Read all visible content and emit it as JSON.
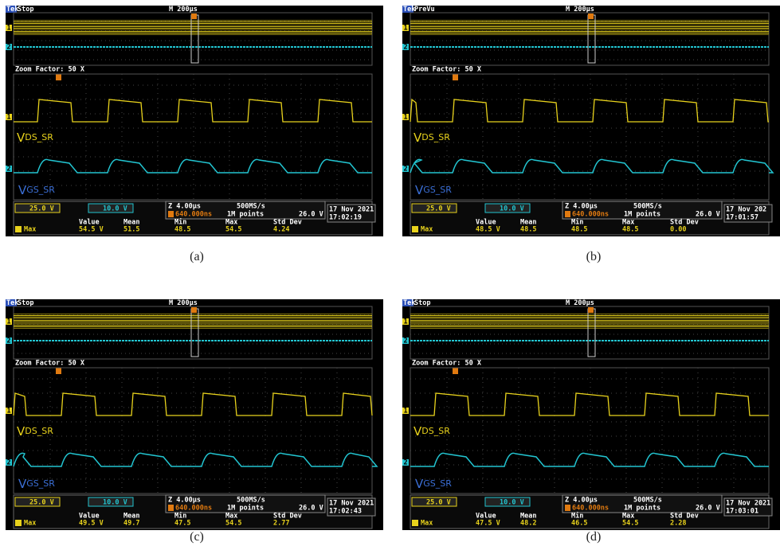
{
  "channel_ids": [
    "1",
    "2"
  ],
  "panels": [
    {
      "caption": "(a)",
      "brand": "Tek",
      "status": "Stop",
      "timebase": "M 200µs",
      "zoom": "Zoom Factor: 50 X",
      "vds": {
        "main": "V",
        "sub": "DS_SR"
      },
      "vgs": {
        "main": "V",
        "sub": "GS_SR"
      },
      "ch1_scale": "25.0 V",
      "ch2_scale": "10.0 V",
      "zoom_scale": "Z 4.00µs",
      "sample_rate": "500MS/s",
      "trigger_pos": "640.000ns",
      "record_length": "1M points",
      "trigger_level": "26.0 V",
      "date": "17 Nov 2021",
      "time": "17:02:19",
      "stats": {
        "headers": [
          "Value",
          "Mean",
          "Min",
          "Max",
          "Std Dev"
        ],
        "label": "Max",
        "row": [
          "54.5 V",
          "51.5",
          "48.5",
          "54.5",
          "4.24"
        ]
      }
    },
    {
      "caption": "(b)",
      "brand": "Tek",
      "status": "PreVu",
      "timebase": "M 200µs",
      "zoom": "Zoom Factor: 50 X",
      "vds": {
        "main": "V",
        "sub": "DS_SR"
      },
      "vgs": {
        "main": "V",
        "sub": "GS_SR"
      },
      "ch1_scale": "25.0 V",
      "ch2_scale": "10.0 V",
      "zoom_scale": "Z 4.00µs",
      "sample_rate": "500MS/s",
      "trigger_pos": "640.000ns",
      "record_length": "1M points",
      "trigger_level": "26.0 V",
      "date": "17 Nov 202",
      "time": "17:01:57",
      "stats": {
        "headers": [
          "Value",
          "Mean",
          "Min",
          "Max",
          "Std Dev"
        ],
        "label": "Max",
        "row": [
          "48.5 V",
          "48.5",
          "48.5",
          "48.5",
          "0.00"
        ]
      }
    },
    {
      "caption": "(c)",
      "brand": "Tek",
      "status": "Stop",
      "timebase": "M 200µs",
      "zoom": "Zoom Factor: 50 X",
      "vds": {
        "main": "V",
        "sub": "DS_SR"
      },
      "vgs": {
        "main": "V",
        "sub": "GS_SR"
      },
      "ch1_scale": "25.0 V",
      "ch2_scale": "10.0 V",
      "zoom_scale": "Z 4.00µs",
      "sample_rate": "500MS/s",
      "trigger_pos": "640.000ns",
      "record_length": "1M points",
      "trigger_level": "26.0 V",
      "date": "17 Nov 2021",
      "time": "17:02:43",
      "stats": {
        "headers": [
          "Value",
          "Mean",
          "Min",
          "Max",
          "Std Dev"
        ],
        "label": "Max",
        "row": [
          "49.5 V",
          "49.7",
          "47.5",
          "54.5",
          "2.77"
        ]
      }
    },
    {
      "caption": "(d)",
      "brand": "Tek",
      "status": "Stop",
      "timebase": "M 200µs",
      "zoom": "Zoom Factor: 50 X",
      "vds": {
        "main": "V",
        "sub": "DS_SR"
      },
      "vgs": {
        "main": "V",
        "sub": "GS_SR"
      },
      "ch1_scale": "25.0 V",
      "ch2_scale": "10.0 V",
      "zoom_scale": "Z 4.00µs",
      "sample_rate": "500MS/s",
      "trigger_pos": "640.000ns",
      "record_length": "1M points",
      "trigger_level": "26.0 V",
      "date": "17 Nov 2021",
      "time": "17:03:01",
      "stats": {
        "headers": [
          "Value",
          "Mean",
          "Min",
          "Max",
          "Std Dev"
        ],
        "label": "Max",
        "row": [
          "47.5 V",
          "48.2",
          "46.5",
          "54.5",
          "2.28"
        ]
      }
    }
  ]
}
